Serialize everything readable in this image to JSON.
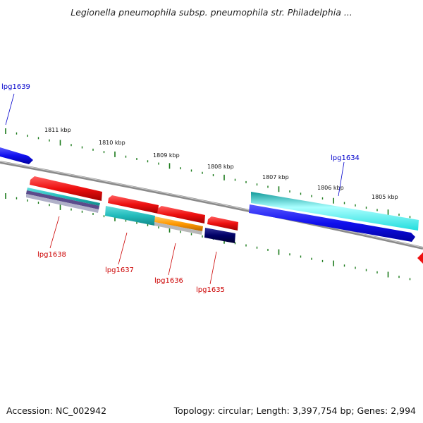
{
  "title": "Legionella pneumophila subsp. pneumophila str. Philadelphia ...",
  "footer": {
    "accession": "Accession: NC_002942",
    "summary": "Topology: circular; Length: 3,397,754 bp; Genes: 2,994"
  },
  "scale_labels": [
    "1811 kbp",
    "1810 kbp",
    "1809 kbp",
    "1808 kbp",
    "1807 kbp",
    "1806 kbp",
    "1805 kbp"
  ],
  "gene_labels": {
    "lpg1639": "lpg1639",
    "lpg1638": "lpg1638",
    "lpg1637": "lpg1637",
    "lpg1636": "lpg1636",
    "lpg1635": "lpg1635",
    "lpg1634": "lpg1634"
  },
  "colors": {
    "forward_strand": "#1010ee",
    "reverse_strand": "#ee1010",
    "label_forward": "#0000cc",
    "label_reverse": "#cc0000",
    "backbone": "#808080",
    "tick": "#1a7a1a",
    "cyan": "#22dddd",
    "teal": "#22bbbb",
    "orange": "#ff9900",
    "navy": "#000066",
    "purple": "#5b4b8b"
  }
}
